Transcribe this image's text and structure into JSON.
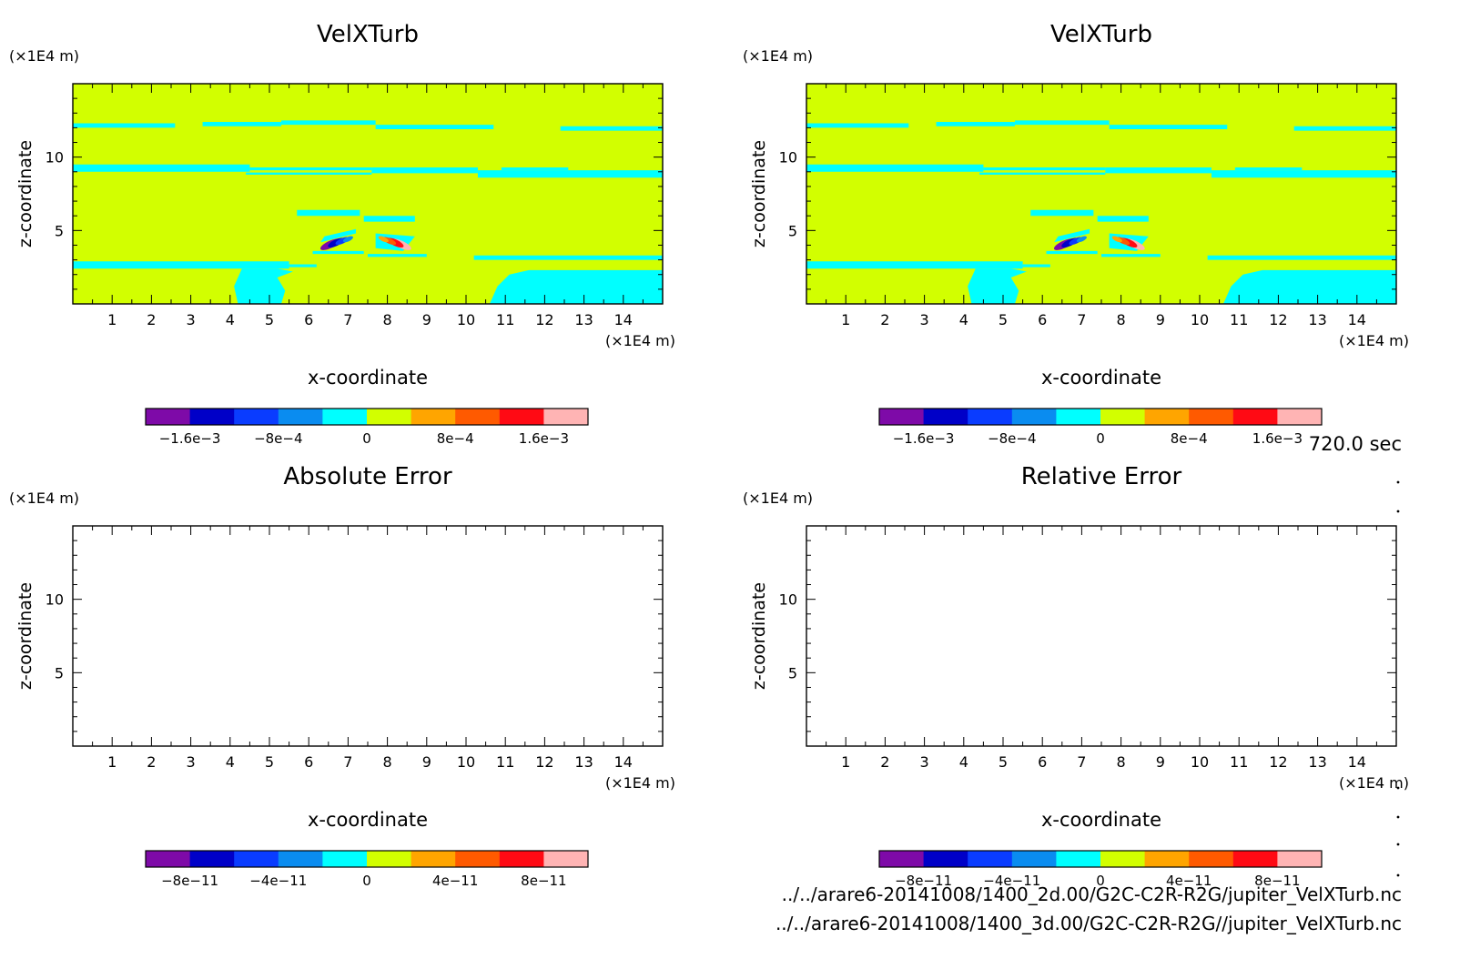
{
  "footer": {
    "time": "720.0 sec",
    "file1": "../../arare6-20141008/1400_2d.00/G2C-C2R-R2G/jupiter_VelXTurb.nc",
    "file2": "../../arare6-20141008/1400_3d.00/G2C-C2R-R2G//jupiter_VelXTurb.nc"
  },
  "chart_data": [
    {
      "type": "heatmap",
      "title": "VelXTurb",
      "xlabel": "x-coordinate",
      "ylabel": "z-coordinate",
      "x_unit": "(×1E4 m)",
      "y_unit": "(×1E4 m)",
      "xlim": [
        0,
        15
      ],
      "ylim": [
        0,
        15
      ],
      "x_ticks": [
        "1",
        "2",
        "3",
        "4",
        "5",
        "6",
        "7",
        "8",
        "9",
        "10",
        "11",
        "12",
        "13",
        "14"
      ],
      "y_ticks": [
        "5",
        "10"
      ],
      "colorbar": {
        "colors": [
          "#7e0aa8",
          "#0000c8",
          "#0a3cff",
          "#0a8cf0",
          "#00ffff",
          "#d2ff00",
          "#ffa500",
          "#ff5a00",
          "#ff0a14",
          "#ffb4b4"
        ],
        "labels": [
          "−1.6e−3",
          "−8e−4",
          "0",
          "8e−4",
          "1.6e−3"
        ]
      },
      "background_level": "0 to 4e-4",
      "features": [
        {
          "level": "-4e-4 to 0",
          "desc": "thin horizontal bands near z=12, 9.2, 6.3, 4.7, 3.2, 2.7; plumes near surface x=4.2-5.0 and x=10.6-15"
        },
        {
          "level": "-1.6e-3",
          "desc": "vortex pair near x=6.5, z=4.1"
        },
        {
          "level": "1.6e-3",
          "desc": "vortex pair near x=8.4, z=4.1"
        }
      ]
    },
    {
      "type": "heatmap",
      "title": "VelXTurb",
      "xlabel": "x-coordinate",
      "ylabel": "z-coordinate",
      "x_unit": "(×1E4 m)",
      "y_unit": "(×1E4 m)",
      "xlim": [
        0,
        15
      ],
      "ylim": [
        0,
        15
      ],
      "x_ticks": [
        "1",
        "2",
        "3",
        "4",
        "5",
        "6",
        "7",
        "8",
        "9",
        "10",
        "11",
        "12",
        "13",
        "14"
      ],
      "y_ticks": [
        "5",
        "10"
      ],
      "colorbar": {
        "colors": [
          "#7e0aa8",
          "#0000c8",
          "#0a3cff",
          "#0a8cf0",
          "#00ffff",
          "#d2ff00",
          "#ffa500",
          "#ff5a00",
          "#ff0a14",
          "#ffb4b4"
        ],
        "labels": [
          "−1.6e−3",
          "−8e−4",
          "0",
          "8e−4",
          "1.6e−3"
        ]
      },
      "background_level": "0 to 4e-4",
      "features": [
        {
          "level": "-4e-4 to 0",
          "desc": "same pattern as left panel"
        },
        {
          "level": "-1.6e-3",
          "desc": "vortex pair near x=6.5, z=4.1"
        },
        {
          "level": "1.6e-3",
          "desc": "vortex pair near x=8.4, z=4.1"
        }
      ]
    },
    {
      "type": "heatmap",
      "title": "Absolute Error",
      "xlabel": "x-coordinate",
      "ylabel": "z-coordinate",
      "x_unit": "(×1E4 m)",
      "y_unit": "(×1E4 m)",
      "xlim": [
        0,
        15
      ],
      "ylim": [
        0,
        15
      ],
      "x_ticks": [
        "1",
        "2",
        "3",
        "4",
        "5",
        "6",
        "7",
        "8",
        "9",
        "10",
        "11",
        "12",
        "13",
        "14"
      ],
      "y_ticks": [
        "5",
        "10"
      ],
      "colorbar": {
        "colors": [
          "#7e0aa8",
          "#0000c8",
          "#0a3cff",
          "#0a8cf0",
          "#00ffff",
          "#d2ff00",
          "#ffa500",
          "#ff5a00",
          "#ff0a14",
          "#ffb4b4"
        ],
        "labels": [
          "−8e−11",
          "−4e−11",
          "0",
          "4e−11",
          "8e−11"
        ]
      },
      "values": "empty (no data shaded)"
    },
    {
      "type": "heatmap",
      "title": "Relative Error",
      "xlabel": "x-coordinate",
      "ylabel": "z-coordinate",
      "x_unit": "(×1E4 m)",
      "y_unit": "(×1E4 m)",
      "xlim": [
        0,
        15
      ],
      "ylim": [
        0,
        15
      ],
      "x_ticks": [
        "1",
        "2",
        "3",
        "4",
        "5",
        "6",
        "7",
        "8",
        "9",
        "10",
        "11",
        "12",
        "13",
        "14"
      ],
      "y_ticks": [
        "5",
        "10"
      ],
      "colorbar": {
        "colors": [
          "#7e0aa8",
          "#0000c8",
          "#0a3cff",
          "#0a8cf0",
          "#00ffff",
          "#d2ff00",
          "#ffa500",
          "#ff5a00",
          "#ff0a14",
          "#ffb4b4"
        ],
        "labels": [
          "−8e−11",
          "−4e−11",
          "0",
          "4e−11",
          "8e−11"
        ]
      },
      "values": "empty (no data shaded)"
    }
  ]
}
